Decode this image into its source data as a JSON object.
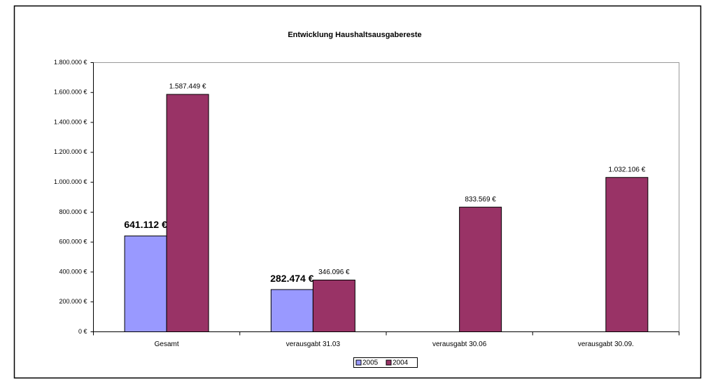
{
  "chart_data": {
    "type": "bar",
    "title": "Entwicklung Haushaltsausgabereste",
    "categories": [
      "Gesamt",
      "verausgabt 31.03",
      "verausgabt 30.06",
      "verausgabt 30.09."
    ],
    "series": [
      {
        "name": "2005",
        "color": "#9999ff",
        "values": [
          641112,
          282474,
          null,
          null
        ],
        "value_labels": [
          "641.112 €",
          "282.474 €",
          null,
          null
        ]
      },
      {
        "name": "2004",
        "color": "#993366",
        "values": [
          1587449,
          346096,
          833569,
          1032106
        ],
        "value_labels": [
          "1.587.449 €",
          "346.096 €",
          "833.569 €",
          "1.032.106 €"
        ]
      }
    ],
    "ylim": [
      0,
      1800000
    ],
    "yticks": [
      {
        "value": 0,
        "label": "0 €"
      },
      {
        "value": 200000,
        "label": "200.000 €"
      },
      {
        "value": 400000,
        "label": "400.000 €"
      },
      {
        "value": 600000,
        "label": "600.000 €"
      },
      {
        "value": 800000,
        "label": "800.000 €"
      },
      {
        "value": 1000000,
        "label": "1.000.000 €"
      },
      {
        "value": 1200000,
        "label": "1.200.000 €"
      },
      {
        "value": 1400000,
        "label": "1.400.000 €"
      },
      {
        "value": 1600000,
        "label": "1.600.000 €"
      },
      {
        "value": 1800000,
        "label": "1.800.000 €"
      }
    ],
    "grid": false,
    "legend": "bottom"
  }
}
